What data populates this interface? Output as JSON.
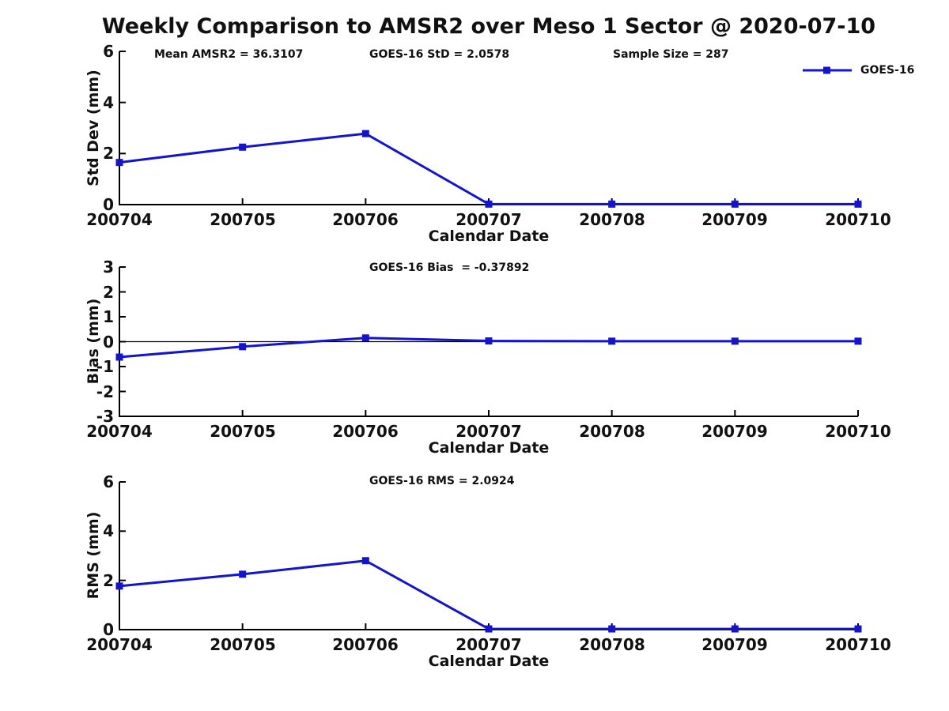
{
  "title": "Weekly Comparison to AMSR2 over Meso 1 Sector @ 2020-07-10",
  "xlabel": "Calendar Date",
  "legend": {
    "label": "GOES-16",
    "position": "top-right"
  },
  "colors": {
    "series": "#1414cc",
    "axis": "#000000",
    "text": "#111111",
    "background": "#ffffff"
  },
  "chart_data": [
    {
      "type": "line",
      "ylabel": "Std Dev (mm)",
      "xlabel": "Calendar Date",
      "categories": [
        "200704",
        "200705",
        "200706",
        "200707",
        "200708",
        "200709",
        "200710"
      ],
      "series": [
        {
          "name": "GOES-16",
          "values": [
            1.65,
            2.25,
            2.78,
            0.02,
            0.02,
            0.02,
            0.02
          ]
        }
      ],
      "ylim": [
        0,
        6
      ],
      "yticks": [
        0,
        2,
        4,
        6
      ],
      "grid": false,
      "legend_position": "top-right",
      "annotations": [
        "Mean AMSR2 = 36.3107",
        "GOES-16 StD = 2.0578",
        "Sample Size = 287"
      ]
    },
    {
      "type": "line",
      "ylabel": "Bias (mm)",
      "xlabel": "Calendar Date",
      "categories": [
        "200704",
        "200705",
        "200706",
        "200707",
        "200708",
        "200709",
        "200710"
      ],
      "series": [
        {
          "name": "GOES-16",
          "values": [
            -0.62,
            -0.2,
            0.15,
            0.03,
            0.02,
            0.02,
            0.02
          ]
        }
      ],
      "ylim": [
        -3,
        3
      ],
      "yticks": [
        3,
        2,
        1,
        0,
        -1,
        -2,
        -3
      ],
      "grid": false,
      "zero_line": true,
      "annotations": [
        "GOES-16 Bias  = -0.37892"
      ]
    },
    {
      "type": "line",
      "ylabel": "RMS (mm)",
      "xlabel": "Calendar Date",
      "categories": [
        "200704",
        "200705",
        "200706",
        "200707",
        "200708",
        "200709",
        "200710"
      ],
      "series": [
        {
          "name": "GOES-16",
          "values": [
            1.77,
            2.25,
            2.8,
            0.03,
            0.03,
            0.03,
            0.03
          ]
        }
      ],
      "ylim": [
        0,
        6
      ],
      "yticks": [
        0,
        2,
        4,
        6
      ],
      "grid": false,
      "annotations": [
        "GOES-16 RMS = 2.0924"
      ]
    }
  ]
}
